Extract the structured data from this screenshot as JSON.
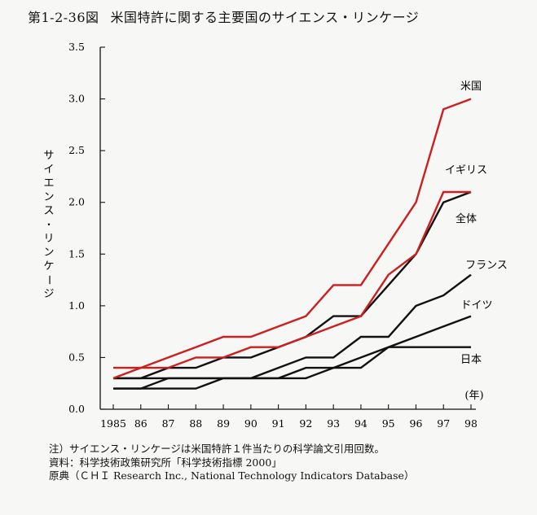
{
  "title_number": "第1-2-36図",
  "title_text": "米国特許に関する主要国のサイエンス・リンケージ",
  "chart_data": {
    "type": "line",
    "title": "米国特許に関する主要国のサイエンス・リンケージ",
    "ylabel": "サイエンス・リンケージ",
    "xlabel": "",
    "x_unit_label": "(年)",
    "x_ticks": [
      "1985",
      "86",
      "87",
      "88",
      "89",
      "90",
      "91",
      "92",
      "93",
      "94",
      "95",
      "96",
      "97",
      "98"
    ],
    "y_ticks": [
      "0.0",
      "0.5",
      "1.0",
      "1.5",
      "2.0",
      "2.5",
      "3.0",
      "3.5"
    ],
    "ylim": [
      0,
      3.5
    ],
    "grid": false,
    "legend": "inline labels at right end of each line",
    "series": [
      {
        "name": "米国",
        "color": "#cc1f1f",
        "values": [
          0.4,
          0.4,
          0.5,
          0.6,
          0.7,
          0.7,
          0.8,
          0.9,
          1.2,
          1.2,
          1.6,
          2.0,
          2.9,
          3.0
        ]
      },
      {
        "name": "イギリス",
        "color": "#cc1f1f",
        "values": [
          0.3,
          0.4,
          0.4,
          0.5,
          0.5,
          0.6,
          0.6,
          0.7,
          0.8,
          0.9,
          1.3,
          1.5,
          2.1,
          2.1
        ]
      },
      {
        "name": "全体",
        "color": "#111111",
        "values": [
          0.3,
          0.3,
          0.4,
          0.4,
          0.5,
          0.5,
          0.6,
          0.7,
          0.9,
          0.9,
          1.2,
          1.5,
          2.0,
          2.1
        ]
      },
      {
        "name": "フランス",
        "color": "#111111",
        "values": [
          0.3,
          0.3,
          0.3,
          0.3,
          0.3,
          0.3,
          0.4,
          0.5,
          0.5,
          0.7,
          0.7,
          1.0,
          1.1,
          1.3
        ]
      },
      {
        "name": "ドイツ",
        "color": "#111111",
        "values": [
          0.2,
          0.2,
          0.3,
          0.3,
          0.3,
          0.3,
          0.3,
          0.4,
          0.4,
          0.4,
          0.6,
          0.7,
          0.8,
          0.9
        ]
      },
      {
        "name": "日本",
        "color": "#111111",
        "values": [
          0.2,
          0.2,
          0.2,
          0.2,
          0.3,
          0.3,
          0.3,
          0.3,
          0.4,
          0.5,
          0.6,
          0.6,
          0.6,
          0.6
        ]
      }
    ]
  },
  "notes": [
    "注）サイエンス・リンケージは米国特許１件当たりの科学論文引用回数。",
    "資料：科学技術政策研究所「科学技術指標 2000」",
    "原典（ＣＨＩ Research Inc., National Technology Indicators Database）"
  ]
}
